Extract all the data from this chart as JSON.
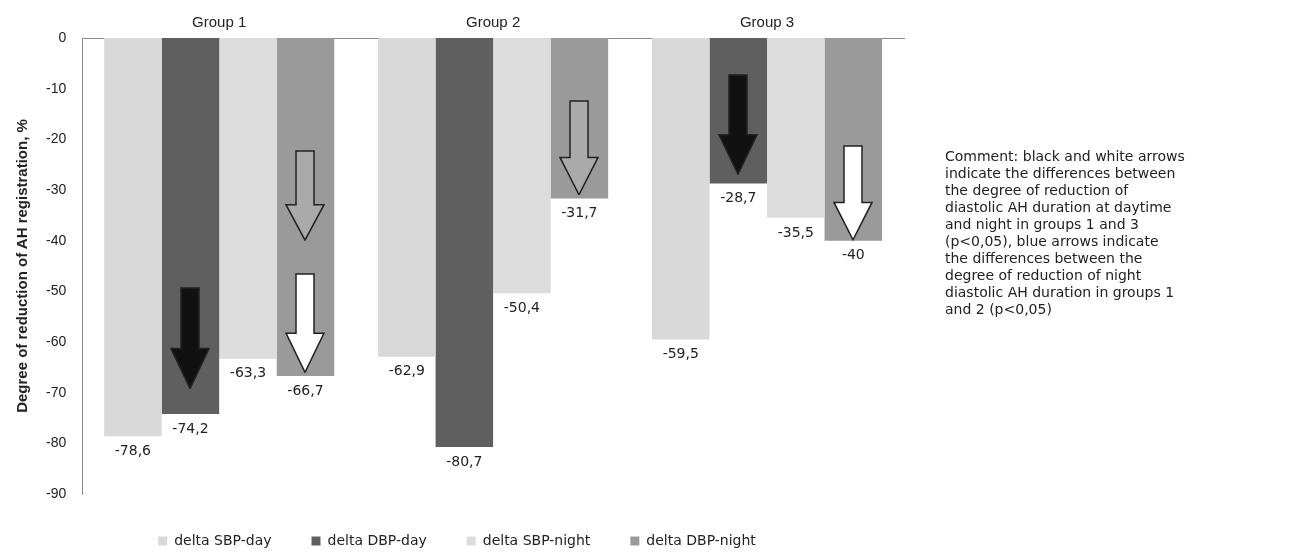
{
  "chart_data": {
    "type": "bar",
    "ylabel": "Degree of reduction of AH registration, %",
    "categories": [
      "Group 1",
      "Group 2",
      "Group 3"
    ],
    "series": [
      {
        "name": "delta SBP-day",
        "color": "#d9d9d9",
        "values": [
          -78.6,
          -62.9,
          -59.5
        ],
        "value_labels": [
          "-78,6",
          "-62,9",
          "-59,5"
        ]
      },
      {
        "name": "delta DBP-day",
        "color": "#5f5f5f",
        "values": [
          -74.2,
          -80.7,
          -28.7
        ],
        "value_labels": [
          "-74,2",
          "-80,7",
          "-28,7"
        ]
      },
      {
        "name": "delta SBP-night",
        "color": "#dcdcdc",
        "values": [
          -63.3,
          -50.4,
          -35.5
        ],
        "value_labels": [
          "-63,3",
          "-50,4",
          "-35,5"
        ]
      },
      {
        "name": "delta DBP-night",
        "color": "#9a9a9a",
        "values": [
          -66.7,
          -31.7,
          -40
        ],
        "value_labels": [
          "-66,7",
          "-31,7",
          "-40"
        ]
      }
    ],
    "ylim": [
      -90,
      0
    ],
    "yticks": [
      0,
      -10,
      -20,
      -30,
      -40,
      -50,
      -60,
      -70,
      -80,
      -90
    ],
    "grid": false,
    "legend": "bottom",
    "annotations": [
      "Comment: black and white arrows indicate the differences between the degree of reduction of diastolic AH duration at daytime and night in groups 1 and 3 (p<0,05), blue arrows indicate the differences between the degree of reduction of night diastolic AH duration in groups 1 and 2 (p<0,05)"
    ]
  }
}
